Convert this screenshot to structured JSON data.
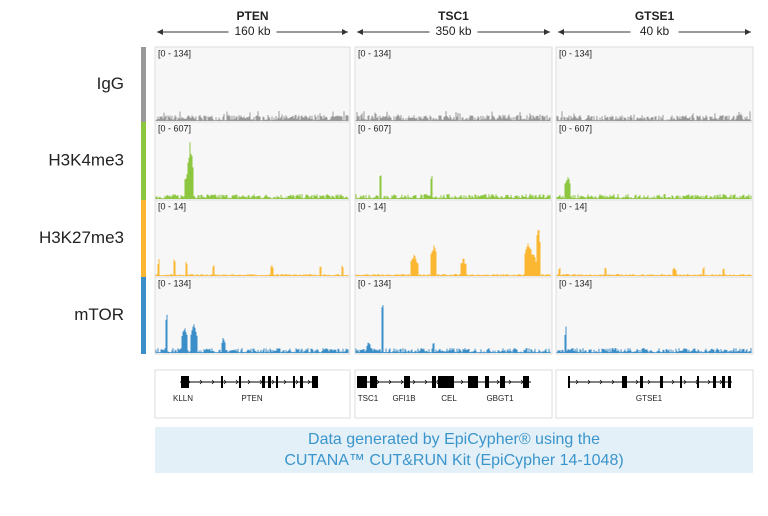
{
  "columns": [
    {
      "gene": "PTEN",
      "size": "160 kb",
      "genes": [
        "KLLN",
        "PTEN"
      ]
    },
    {
      "gene": "TSC1",
      "size": "350 kb",
      "genes": [
        "TSC1",
        "GFI1B",
        "CEL",
        "GBGT1"
      ]
    },
    {
      "gene": "GTSE1",
      "size": "40 kb",
      "genes": [
        "GTSE1"
      ]
    }
  ],
  "tracks": [
    {
      "label": "IgG",
      "range": "[0 - 134]"
    },
    {
      "label": "H3K4me3",
      "range": "[0 - 607]"
    },
    {
      "label": "H3K27me3",
      "range": "[0 - 14]"
    },
    {
      "label": "mTOR",
      "range": "[0 - 134]"
    }
  ],
  "footer": {
    "line1": "Data generated by EpiCypher® using the",
    "line2": "CUTANA™ CUT&RUN Kit (EpiCypher 14-1048)"
  }
}
